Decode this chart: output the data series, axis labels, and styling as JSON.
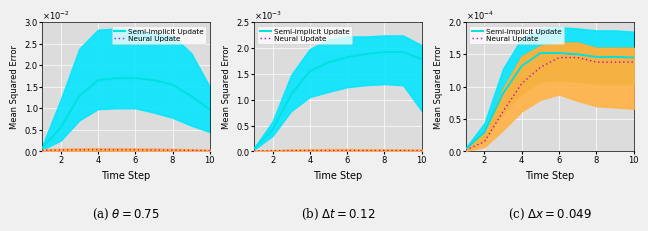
{
  "background_color": "#dcdcdc",
  "fig_facecolor": "#f0f0f0",
  "semi_implicit_color": "#00e0e0",
  "neural_color": "#cc00cc",
  "fill_cyan": "#00e5ff",
  "fill_orange": "#ffb347",
  "fill_green": "#8db000",
  "subplot_a": {
    "title": "(a) $\\theta = 0.75$",
    "ylabel": "Mean Squared Error",
    "xlabel": "Time Step",
    "exp": -2,
    "ylim": [
      0.0,
      3.0
    ],
    "yticks": [
      0.0,
      0.5,
      1.0,
      1.5,
      2.0,
      2.5,
      3.0
    ],
    "xticks": [
      2,
      4,
      6,
      8,
      10
    ],
    "x": [
      1,
      2,
      3,
      4,
      5,
      6,
      7,
      8,
      9,
      10
    ],
    "si_mean": [
      0.08,
      0.55,
      1.28,
      1.65,
      1.7,
      1.7,
      1.65,
      1.55,
      1.28,
      0.97
    ],
    "si_upper": [
      0.12,
      1.2,
      2.38,
      2.82,
      2.85,
      2.82,
      2.72,
      2.68,
      2.28,
      1.5
    ],
    "si_lower": [
      0.04,
      0.25,
      0.72,
      0.98,
      1.0,
      1.0,
      0.9,
      0.78,
      0.6,
      0.45
    ],
    "neural_mean": [
      0.028,
      0.035,
      0.04,
      0.042,
      0.04,
      0.038,
      0.036,
      0.032,
      0.028,
      0.02
    ],
    "neural_upper": [
      0.048,
      0.068,
      0.075,
      0.08,
      0.078,
      0.075,
      0.07,
      0.062,
      0.055,
      0.042
    ],
    "neural_lower": [
      0.01,
      0.014,
      0.016,
      0.018,
      0.016,
      0.016,
      0.014,
      0.012,
      0.01,
      0.006
    ]
  },
  "subplot_b": {
    "title": "(b) $\\Delta t = 0.12$",
    "ylabel": "Mean Squared Error",
    "xlabel": "Time Step",
    "exp": -3,
    "ylim": [
      0.0,
      2.5
    ],
    "yticks": [
      0.0,
      0.5,
      1.0,
      1.5,
      2.0,
      2.5
    ],
    "xticks": [
      2,
      4,
      6,
      8,
      10
    ],
    "x": [
      1,
      2,
      3,
      4,
      5,
      6,
      7,
      8,
      9,
      10
    ],
    "si_mean": [
      0.05,
      0.42,
      1.1,
      1.55,
      1.72,
      1.82,
      1.88,
      1.92,
      1.92,
      1.78
    ],
    "si_upper": [
      0.065,
      0.58,
      1.48,
      1.98,
      2.16,
      2.22,
      2.22,
      2.24,
      2.24,
      2.05
    ],
    "si_lower": [
      0.032,
      0.3,
      0.78,
      1.05,
      1.15,
      1.24,
      1.28,
      1.3,
      1.28,
      0.78
    ],
    "neural_mean": [
      0.012,
      0.015,
      0.018,
      0.02,
      0.02,
      0.021,
      0.02,
      0.019,
      0.019,
      0.018
    ],
    "neural_upper": [
      0.02,
      0.028,
      0.038,
      0.044,
      0.048,
      0.048,
      0.044,
      0.042,
      0.042,
      0.038
    ],
    "neural_lower": [
      0.005,
      0.006,
      0.008,
      0.009,
      0.009,
      0.009,
      0.009,
      0.008,
      0.008,
      0.007
    ]
  },
  "subplot_c": {
    "title": "(c) $\\Delta x = 0.049$",
    "ylabel": "Mean Squared Error",
    "xlabel": "Time Step",
    "exp": -4,
    "ylim": [
      0.0,
      2.0
    ],
    "yticks": [
      0.0,
      0.5,
      1.0,
      1.5,
      2.0
    ],
    "xticks": [
      2,
      4,
      6,
      8,
      10
    ],
    "x": [
      1,
      2,
      3,
      4,
      5,
      6,
      7,
      8,
      9,
      10
    ],
    "si_mean": [
      0.038,
      0.3,
      0.9,
      1.32,
      1.52,
      1.52,
      1.5,
      1.46,
      1.46,
      1.45
    ],
    "si_upper": [
      0.058,
      0.44,
      1.28,
      1.75,
      1.9,
      1.92,
      1.9,
      1.87,
      1.87,
      1.85
    ],
    "si_lower": [
      0.022,
      0.17,
      0.58,
      0.9,
      1.08,
      1.1,
      1.08,
      1.05,
      1.05,
      1.05
    ],
    "neural_mean": [
      0.022,
      0.15,
      0.62,
      1.05,
      1.3,
      1.45,
      1.45,
      1.38,
      1.38,
      1.38
    ],
    "neural_upper": [
      0.035,
      0.28,
      0.97,
      1.47,
      1.63,
      1.68,
      1.68,
      1.6,
      1.6,
      1.6
    ],
    "neural_lower": [
      0.01,
      0.07,
      0.33,
      0.62,
      0.8,
      0.88,
      0.78,
      0.7,
      0.68,
      0.66
    ]
  }
}
